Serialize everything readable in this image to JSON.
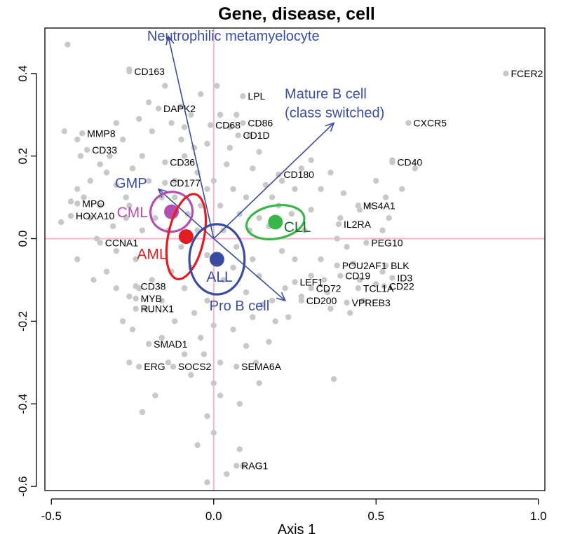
{
  "chart_data": {
    "type": "scatter",
    "title": "Gene, disease, cell",
    "xlabel": "Axis 1",
    "ylabel": "",
    "xlim": [
      -0.52,
      1.02
    ],
    "ylim": [
      -0.61,
      0.51
    ],
    "xticks": [
      -0.5,
      0.0,
      0.5,
      1.0
    ],
    "xtick_labels": [
      "-0.5",
      "0.0",
      "0.5",
      "1.0"
    ],
    "yticks": [
      -0.6,
      -0.4,
      -0.2,
      0.0,
      0.2,
      0.4
    ],
    "ytick_labels": [
      "-0.6",
      "-0.4",
      "-0.2",
      "0.0",
      "0.2",
      "0.4"
    ],
    "reference_lines": {
      "x": 0,
      "y": 0,
      "color": "#f4b6c8"
    },
    "point_color": "#c8c8c8",
    "labeled_genes": [
      {
        "label": "CD163",
        "x": -0.26,
        "y": 0.405
      },
      {
        "label": "MMP8",
        "x": -0.405,
        "y": 0.255
      },
      {
        "label": "CD33",
        "x": -0.39,
        "y": 0.215
      },
      {
        "label": "DAPK2",
        "x": -0.17,
        "y": 0.315
      },
      {
        "label": "LPL",
        "x": 0.09,
        "y": 0.345
      },
      {
        "label": "CD68",
        "x": -0.01,
        "y": 0.275
      },
      {
        "label": "CD86",
        "x": 0.09,
        "y": 0.28
      },
      {
        "label": "CD1D",
        "x": 0.075,
        "y": 0.25
      },
      {
        "label": "CD36",
        "x": -0.15,
        "y": 0.185
      },
      {
        "label": "CD177",
        "x": -0.15,
        "y": 0.135
      },
      {
        "label": "MPO",
        "x": -0.42,
        "y": 0.085
      },
      {
        "label": "HOXA10",
        "x": -0.44,
        "y": 0.055
      },
      {
        "label": "CCNA1",
        "x": -0.35,
        "y": -0.01
      },
      {
        "label": "CD38",
        "x": -0.24,
        "y": -0.115
      },
      {
        "label": "MYB",
        "x": -0.24,
        "y": -0.145
      },
      {
        "label": "RUNX1",
        "x": -0.24,
        "y": -0.17
      },
      {
        "label": "SMAD1",
        "x": -0.2,
        "y": -0.255
      },
      {
        "label": "ERG",
        "x": -0.23,
        "y": -0.31
      },
      {
        "label": "SOCS2",
        "x": -0.125,
        "y": -0.31
      },
      {
        "label": "SEMA6A",
        "x": 0.07,
        "y": -0.31
      },
      {
        "label": "RAG1",
        "x": 0.07,
        "y": -0.55
      },
      {
        "label": "CD180",
        "x": 0.2,
        "y": 0.155
      },
      {
        "label": "CD40",
        "x": 0.55,
        "y": 0.185
      },
      {
        "label": "CXCR5",
        "x": 0.6,
        "y": 0.28
      },
      {
        "label": "FCER2",
        "x": 0.9,
        "y": 0.4
      },
      {
        "label": "MS4A1",
        "x": 0.445,
        "y": 0.08
      },
      {
        "label": "IL2RA",
        "x": 0.385,
        "y": 0.035
      },
      {
        "label": "PEG10",
        "x": 0.47,
        "y": -0.01
      },
      {
        "label": "POU2AF1",
        "x": 0.38,
        "y": -0.065
      },
      {
        "label": "CD19",
        "x": 0.39,
        "y": -0.09
      },
      {
        "label": "LEF1",
        "x": 0.25,
        "y": -0.105
      },
      {
        "label": "CD72",
        "x": 0.3,
        "y": -0.12
      },
      {
        "label": "TCL1A",
        "x": 0.445,
        "y": -0.12
      },
      {
        "label": "CD22",
        "x": 0.525,
        "y": -0.115
      },
      {
        "label": "BLK",
        "x": 0.53,
        "y": -0.065
      },
      {
        "label": "ID3",
        "x": 0.55,
        "y": -0.095
      },
      {
        "label": "CD200",
        "x": 0.27,
        "y": -0.15
      },
      {
        "label": "VPREB3",
        "x": 0.41,
        "y": -0.155
      }
    ],
    "background_points": [
      [
        -0.45,
        0.47
      ],
      [
        -0.26,
        0.41
      ],
      [
        -0.46,
        0.26
      ],
      [
        -0.42,
        0.24
      ],
      [
        -0.41,
        0.2
      ],
      [
        -0.42,
        0.12
      ],
      [
        -0.44,
        0.09
      ],
      [
        -0.47,
        0.04
      ],
      [
        -0.42,
        -0.05
      ],
      [
        -0.37,
        -0.1
      ],
      [
        -0.33,
        -0.08
      ],
      [
        -0.28,
        -0.2
      ],
      [
        -0.25,
        -0.22
      ],
      [
        -0.26,
        -0.3
      ],
      [
        -0.22,
        -0.42
      ],
      [
        -0.18,
        -0.38
      ],
      [
        -0.09,
        -0.28
      ],
      [
        -0.07,
        -0.33
      ],
      [
        -0.03,
        -0.28
      ],
      [
        0.0,
        -0.35
      ],
      [
        0.02,
        -0.38
      ],
      [
        -0.02,
        -0.43
      ],
      [
        -0.05,
        -0.5
      ],
      [
        0.0,
        -0.47
      ],
      [
        0.08,
        -0.51
      ],
      [
        0.09,
        -0.55
      ],
      [
        0.04,
        -0.57
      ],
      [
        0.1,
        -0.26
      ],
      [
        0.17,
        -0.25
      ],
      [
        0.13,
        -0.3
      ],
      [
        0.14,
        -0.35
      ],
      [
        0.19,
        -0.2
      ],
      [
        0.36,
        -0.17
      ],
      [
        0.37,
        -0.34
      ],
      [
        0.33,
        -0.05
      ],
      [
        0.35,
        -0.13
      ],
      [
        0.42,
        -0.18
      ],
      [
        0.46,
        -0.15
      ],
      [
        0.5,
        -0.11
      ],
      [
        0.52,
        -0.08
      ],
      [
        0.43,
        -0.06
      ],
      [
        0.52,
        0.02
      ],
      [
        0.53,
        0.1
      ],
      [
        0.54,
        0.05
      ],
      [
        0.62,
        0.17
      ],
      [
        0.6,
        0.28
      ],
      [
        0.55,
        0.19
      ],
      [
        0.48,
        0.08
      ],
      [
        0.45,
        0.07
      ],
      [
        0.36,
        0.16
      ],
      [
        0.33,
        0.12
      ],
      [
        0.27,
        0.17
      ],
      [
        0.21,
        0.14
      ],
      [
        0.16,
        0.13
      ],
      [
        0.12,
        0.17
      ],
      [
        0.14,
        0.21
      ],
      [
        0.07,
        0.3
      ],
      [
        0.11,
        0.25
      ],
      [
        0.05,
        0.27
      ],
      [
        -0.02,
        0.23
      ],
      [
        -0.09,
        0.27
      ],
      [
        -0.13,
        0.28
      ],
      [
        -0.19,
        0.26
      ],
      [
        -0.22,
        0.2
      ],
      [
        -0.28,
        0.24
      ],
      [
        -0.32,
        0.2
      ],
      [
        -0.35,
        0.18
      ],
      [
        -0.38,
        0.14
      ],
      [
        -0.3,
        0.13
      ],
      [
        -0.27,
        0.1
      ],
      [
        -0.35,
        0.08
      ],
      [
        -0.31,
        0.03
      ],
      [
        -0.27,
        0.05
      ],
      [
        -0.22,
        0.02
      ],
      [
        -0.24,
        -0.05
      ],
      [
        -0.3,
        -0.12
      ],
      [
        -0.19,
        -0.1
      ],
      [
        -0.16,
        -0.15
      ],
      [
        -0.13,
        -0.08
      ],
      [
        -0.09,
        -0.12
      ],
      [
        -0.06,
        -0.18
      ],
      [
        -0.02,
        -0.15
      ],
      [
        0.03,
        -0.1
      ],
      [
        0.06,
        -0.07
      ],
      [
        0.1,
        -0.13
      ],
      [
        0.14,
        -0.09
      ],
      [
        0.18,
        -0.15
      ],
      [
        0.22,
        -0.12
      ],
      [
        0.25,
        -0.05
      ],
      [
        0.28,
        0.02
      ],
      [
        0.24,
        0.06
      ],
      [
        0.2,
        0.08
      ],
      [
        0.14,
        0.05
      ],
      [
        0.1,
        0.1
      ],
      [
        0.06,
        0.12
      ],
      [
        0.02,
        0.08
      ],
      [
        -0.02,
        0.12
      ],
      [
        -0.05,
        0.16
      ],
      [
        -0.09,
        0.2
      ],
      [
        -0.12,
        0.14
      ],
      [
        -0.16,
        0.1
      ],
      [
        -0.2,
        0.14
      ],
      [
        -0.25,
        0.17
      ],
      [
        -0.18,
        0.05
      ],
      [
        -0.14,
        0.02
      ],
      [
        -0.1,
        -0.02
      ],
      [
        -0.05,
        0.02
      ],
      [
        -0.02,
        -0.04
      ],
      [
        0.03,
        0.02
      ],
      [
        0.07,
        -0.02
      ],
      [
        0.11,
        0.02
      ],
      [
        -0.08,
        0.06
      ],
      [
        -0.04,
        0.08
      ],
      [
        0.0,
        0.14
      ],
      [
        0.04,
        0.18
      ],
      [
        -0.06,
        0.22
      ],
      [
        -0.1,
        0.32
      ],
      [
        -0.04,
        0.35
      ],
      [
        0.02,
        0.3
      ],
      [
        -0.15,
        0.37
      ],
      [
        -0.2,
        0.33
      ],
      [
        -0.23,
        0.29
      ],
      [
        0.17,
        0.03
      ],
      [
        0.21,
        -0.03
      ],
      [
        0.3,
        0.07
      ],
      [
        0.39,
        0.05
      ],
      [
        0.41,
        -0.02
      ],
      [
        0.3,
        -0.09
      ],
      [
        0.27,
        -0.14
      ],
      [
        0.23,
        -0.19
      ],
      [
        0.12,
        -0.19
      ],
      [
        0.06,
        -0.22
      ],
      [
        0.0,
        -0.21
      ],
      [
        -0.04,
        -0.24
      ],
      [
        -0.12,
        -0.2
      ],
      [
        -0.16,
        -0.24
      ],
      [
        -0.21,
        -0.17
      ],
      [
        -0.23,
        -0.12
      ],
      [
        -0.3,
        -0.03
      ],
      [
        -0.36,
        0.0
      ],
      [
        -0.38,
        0.05
      ],
      [
        -0.1,
        0.24
      ],
      [
        0.05,
        0.22
      ],
      [
        0.18,
        0.1
      ],
      [
        0.08,
        0.06
      ],
      [
        -0.12,
        0.1
      ],
      [
        -0.26,
        0.08
      ],
      [
        0.25,
        0.12
      ],
      [
        0.3,
        0.19
      ],
      [
        0.4,
        0.11
      ],
      [
        0.5,
        0.14
      ],
      [
        0.58,
        0.12
      ],
      [
        0.08,
        -0.4
      ],
      [
        -0.02,
        -0.59
      ],
      [
        0.15,
        -0.16
      ],
      [
        -0.26,
        -0.14
      ],
      [
        0.34,
        -0.1
      ],
      [
        0.45,
        -0.1
      ],
      [
        0.38,
        0.0
      ],
      [
        -0.33,
        0.16
      ],
      [
        -0.4,
        0.1
      ],
      [
        -0.07,
        -0.07
      ],
      [
        0.12,
        -0.05
      ],
      [
        0.02,
        -0.3
      ],
      [
        -0.14,
        -0.3
      ],
      [
        -0.3,
        0.28
      ],
      [
        0.01,
        0.37
      ],
      [
        -0.07,
        0.3
      ]
    ],
    "biplot_arrows": [
      {
        "label": "Neutrophilic metamyelocyte",
        "x": -0.14,
        "y": 0.49,
        "color": "#3a4ca0"
      },
      {
        "label": "Mature B cell",
        "label2": "(class switched)",
        "x": 0.37,
        "y": 0.28,
        "color": "#3a4ca0"
      },
      {
        "label": "GMP",
        "x": -0.17,
        "y": 0.12,
        "color": "#3a4ca0"
      },
      {
        "label": "Pro B cell",
        "x": 0.22,
        "y": -0.15,
        "color": "#3a4ca0"
      }
    ],
    "groups": [
      {
        "label": "CML",
        "x": -0.13,
        "y": 0.065,
        "rx": 0.065,
        "ry": 0.048,
        "angle": -15,
        "color": "#b44fb1",
        "label_color": "#b44fb1"
      },
      {
        "label": "AML",
        "x": -0.085,
        "y": 0.005,
        "rx": 0.055,
        "ry": 0.105,
        "angle": 12,
        "color": "#e11d22",
        "label_color": "#e11d22"
      },
      {
        "label": "ALL",
        "x": 0.01,
        "y": -0.05,
        "rx": 0.085,
        "ry": 0.085,
        "angle": 0,
        "color": "#3a4ca0",
        "label_color": "#3a4ca0"
      },
      {
        "label": "CLL",
        "x": 0.19,
        "y": 0.04,
        "rx": 0.09,
        "ry": 0.04,
        "angle": -10,
        "color": "#39b54a",
        "label_color": "#1e6e2b"
      }
    ]
  }
}
